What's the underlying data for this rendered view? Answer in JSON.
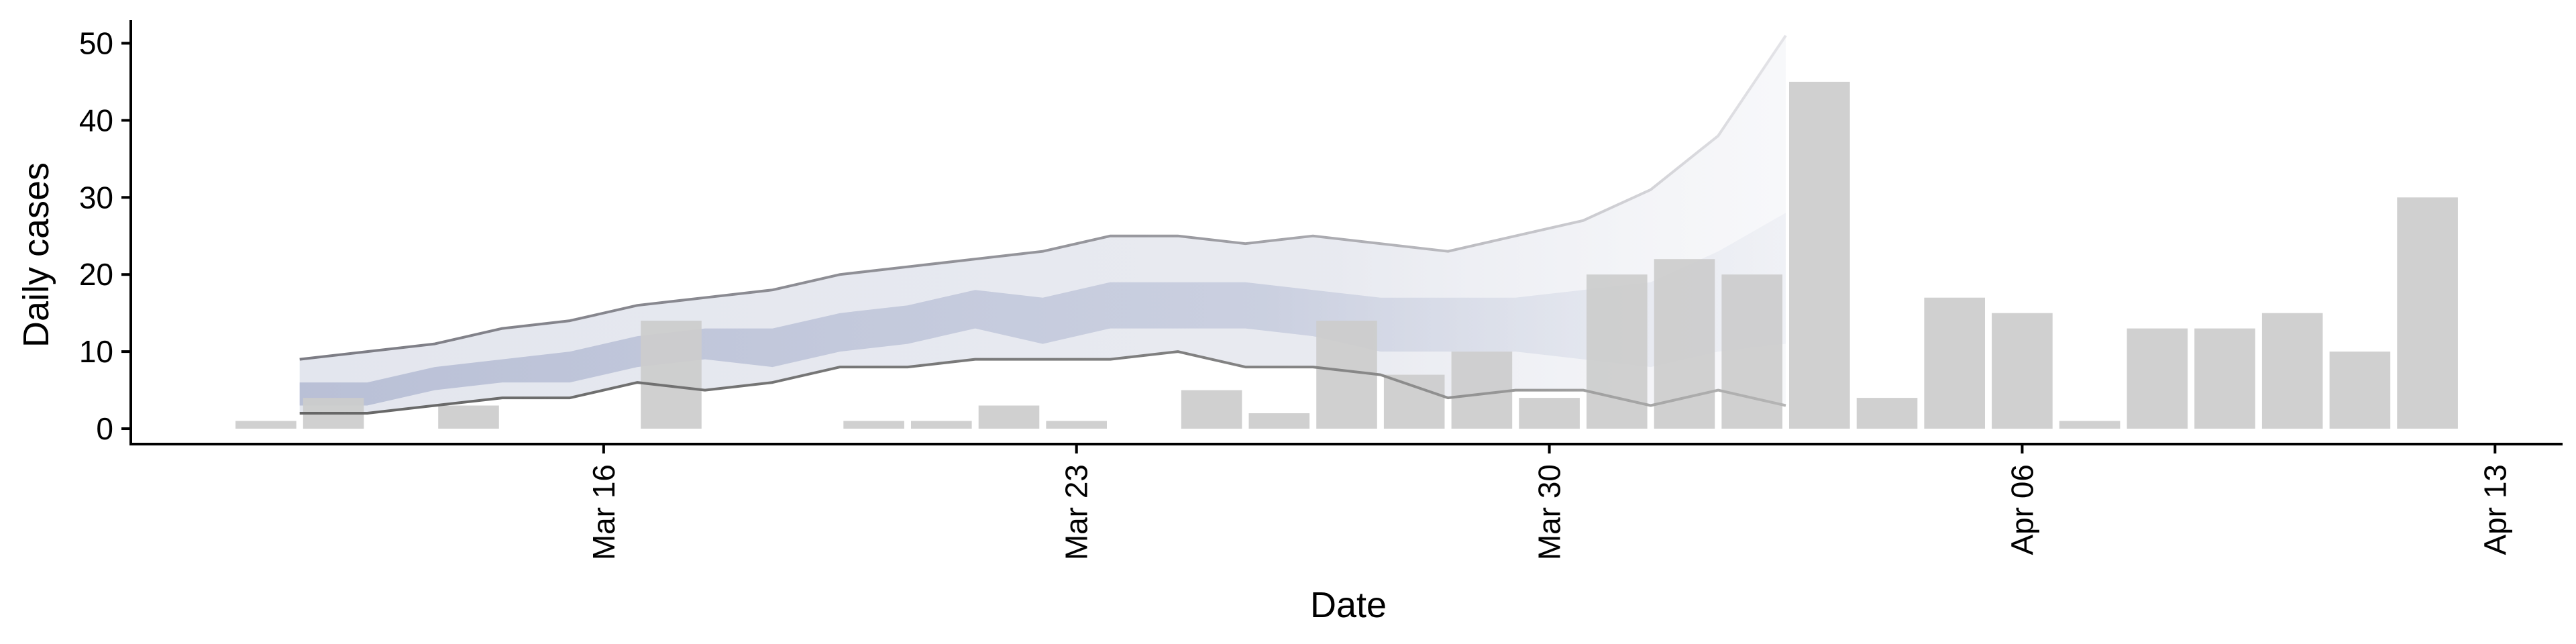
{
  "chart_data": {
    "type": "bar",
    "title": "",
    "xlabel": "Date",
    "ylabel": "Daily cases",
    "ylim": [
      -2,
      53
    ],
    "yticks": [
      0,
      10,
      20,
      30,
      40,
      50
    ],
    "xticks": [
      {
        "day": 16,
        "label": "Mar 16"
      },
      {
        "day": 23,
        "label": "Mar 23"
      },
      {
        "day": 30,
        "label": "Mar 30"
      },
      {
        "day": 37,
        "label": "Apr 06"
      },
      {
        "day": 44,
        "label": "Apr 13"
      }
    ],
    "x_range_days": [
      9,
      45
    ],
    "bars": [
      {
        "day": 11,
        "value": 1
      },
      {
        "day": 12,
        "value": 4
      },
      {
        "day": 14,
        "value": 3
      },
      {
        "day": 17,
        "value": 14
      },
      {
        "day": 20,
        "value": 1
      },
      {
        "day": 21,
        "value": 1
      },
      {
        "day": 22,
        "value": 3
      },
      {
        "day": 23,
        "value": 1
      },
      {
        "day": 25,
        "value": 5
      },
      {
        "day": 26,
        "value": 2
      },
      {
        "day": 27,
        "value": 14
      },
      {
        "day": 28,
        "value": 7
      },
      {
        "day": 29,
        "value": 10
      },
      {
        "day": 30,
        "value": 4
      },
      {
        "day": 31,
        "value": 20
      },
      {
        "day": 32,
        "value": 22
      },
      {
        "day": 33,
        "value": 20
      },
      {
        "day": 34,
        "value": 45
      },
      {
        "day": 35,
        "value": 4
      },
      {
        "day": 36,
        "value": 17
      },
      {
        "day": 37,
        "value": 15
      },
      {
        "day": 38,
        "value": 1
      },
      {
        "day": 39,
        "value": 13
      },
      {
        "day": 40,
        "value": 13
      },
      {
        "day": 41,
        "value": 15
      },
      {
        "day": 42,
        "value": 10
      },
      {
        "day": 43,
        "value": 30
      }
    ],
    "projection": {
      "days": [
        11.5,
        12.5,
        13.5,
        14.5,
        15.5,
        16.5,
        17.5,
        18.5,
        19.5,
        20.5,
        21.5,
        22.5,
        23.5,
        24.5,
        25.5,
        26.5,
        27.5,
        28.5,
        29.5,
        30.5,
        31.5,
        32.5,
        33.5,
        34.5
      ],
      "upper90": [
        9,
        10,
        11,
        13,
        14,
        16,
        17,
        18,
        20,
        21,
        22,
        23,
        25,
        25,
        24,
        25,
        24,
        23,
        25,
        27,
        31,
        38,
        51
      ],
      "lower90": [
        2,
        2,
        3,
        4,
        4,
        6,
        5,
        6,
        8,
        8,
        9,
        9,
        9,
        10,
        8,
        8,
        7,
        4,
        5,
        5,
        3,
        5,
        3
      ],
      "upper50": [
        6,
        6,
        8,
        9,
        10,
        12,
        13,
        13,
        15,
        16,
        18,
        17,
        19,
        19,
        19,
        18,
        17,
        17,
        17,
        18,
        19,
        23,
        28
      ],
      "lower50": [
        3,
        3,
        5,
        6,
        6,
        8,
        9,
        8,
        10,
        11,
        13,
        11,
        13,
        13,
        13,
        12,
        10,
        10,
        10,
        9,
        8,
        10,
        11
      ]
    },
    "colors": {
      "bar": "#cccccc",
      "ribbon90": "#dde0ea",
      "ribbon50": "#b6bdd4",
      "upper_line": "#7a7a80",
      "lower_line": "#6e6e6e"
    }
  }
}
